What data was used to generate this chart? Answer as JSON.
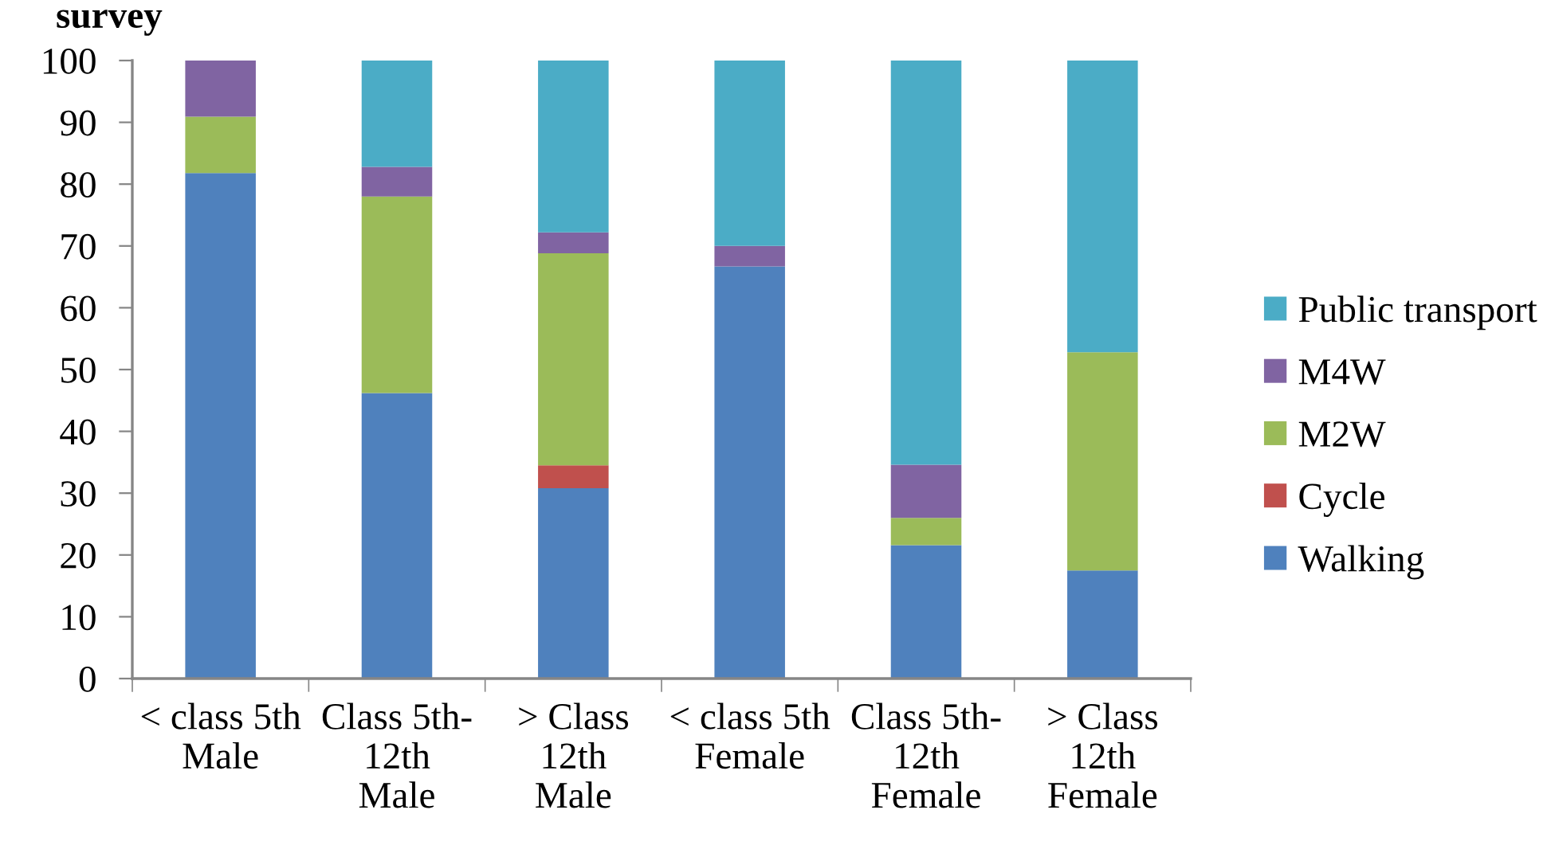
{
  "chart_data": {
    "type": "bar",
    "title": "survey",
    "stacked": true,
    "categories": [
      "< class 5th\nMale",
      "Class 5th-\n12th\nMale",
      "> Class\n12th\nMale",
      "< class 5th\nFemale",
      "Class 5th-\n12th\nFemale",
      "> Class\n12th\nFemale"
    ],
    "series": [
      {
        "name": "Walking",
        "color": "#4f81bd",
        "values": [
          81.8,
          46.2,
          30.8,
          66.7,
          21.6,
          17.5
        ]
      },
      {
        "name": "Cycle",
        "color": "#c0504d",
        "values": [
          0,
          0,
          3.7,
          0,
          0,
          0
        ]
      },
      {
        "name": "M2W",
        "color": "#9bbb59",
        "values": [
          9.1,
          31.8,
          34.3,
          0,
          4.4,
          35.3
        ]
      },
      {
        "name": "M4W",
        "color": "#8064a2",
        "values": [
          9.1,
          4.8,
          3.4,
          3.3,
          8.6,
          0
        ]
      },
      {
        "name": "Public transport",
        "color": "#4bacc6",
        "values": [
          0,
          17.2,
          27.8,
          30.0,
          65.4,
          47.2
        ]
      }
    ],
    "ylim": [
      0,
      100
    ],
    "yticks": [
      0,
      10,
      20,
      30,
      40,
      50,
      60,
      70,
      80,
      90,
      100
    ],
    "grid": false,
    "legend": "right"
  }
}
